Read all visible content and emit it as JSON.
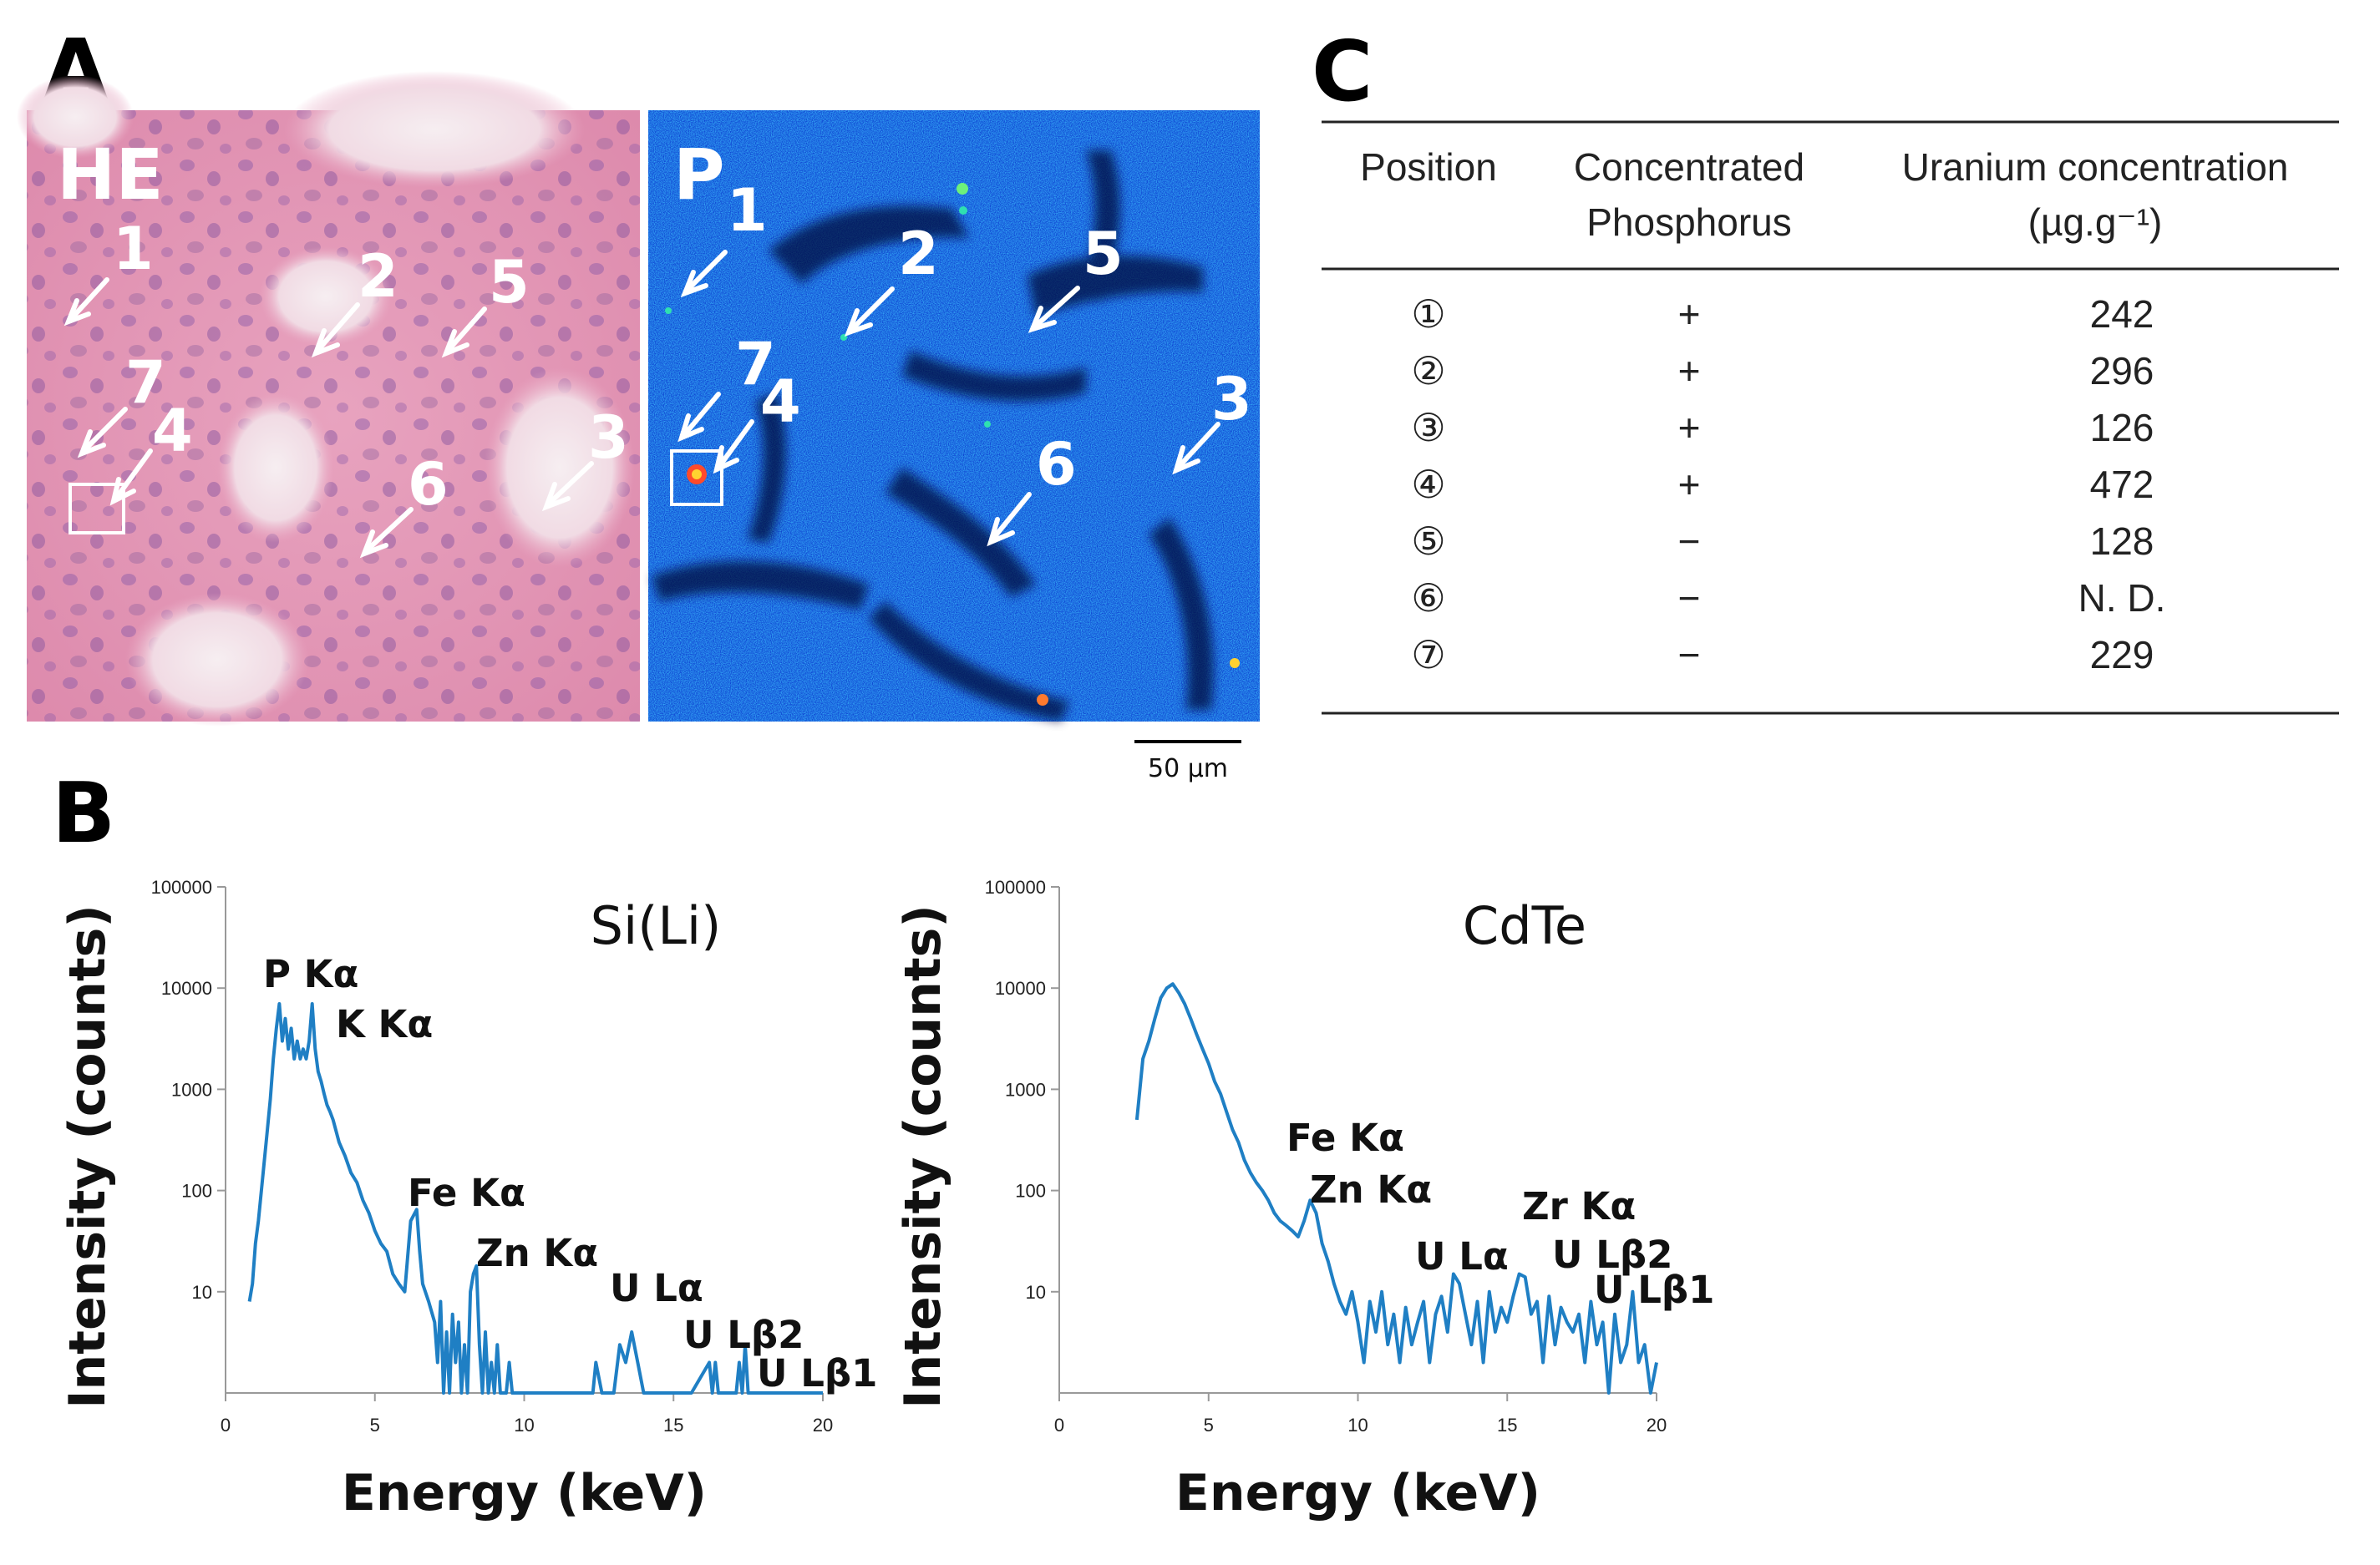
{
  "panels": {
    "a": "A",
    "b": "B",
    "c": "C"
  },
  "panel_a": {
    "he_label": "HE",
    "p_label": "P",
    "he_points": [
      "1",
      "2",
      "5",
      "7",
      "4",
      "3",
      "6"
    ],
    "p_points": [
      "1",
      "2",
      "5",
      "7",
      "4",
      "3",
      "6"
    ],
    "scale_bar": "50 µm"
  },
  "table": {
    "headers": {
      "position": "Position",
      "phosphorus_1": "Concentrated",
      "phosphorus_2": "Phosphorus",
      "uranium_1": "Uranium concentration",
      "uranium_2": "(µg.g⁻¹)"
    },
    "rows": [
      {
        "position": "①",
        "phosphorus": "+",
        "uranium": "242"
      },
      {
        "position": "②",
        "phosphorus": "+",
        "uranium": "296"
      },
      {
        "position": "③",
        "phosphorus": "+",
        "uranium": "126"
      },
      {
        "position": "④",
        "phosphorus": "+",
        "uranium": "472"
      },
      {
        "position": "⑤",
        "phosphorus": "−",
        "uranium": "128"
      },
      {
        "position": "⑥",
        "phosphorus": "−",
        "uranium": "N. D."
      },
      {
        "position": "⑦",
        "phosphorus": "−",
        "uranium": "229"
      }
    ]
  },
  "chart_data": [
    {
      "type": "line",
      "title": "Si(Li)",
      "xlabel": "Energy (keV)",
      "ylabel": "Intensity (counts)",
      "xlim": [
        0,
        20
      ],
      "ylim": [
        1,
        100000
      ],
      "yscale": "log",
      "xticks": [
        "0",
        "5",
        "10",
        "15",
        "20"
      ],
      "yticks": [
        "10",
        "100",
        "1000",
        "10000",
        "100000"
      ],
      "color": "#1f7fc4",
      "series": [
        {
          "name": "Si(Li)",
          "x": [
            0.8,
            0.9,
            1.0,
            1.1,
            1.2,
            1.3,
            1.4,
            1.5,
            1.6,
            1.7,
            1.8,
            1.9,
            2.0,
            2.1,
            2.2,
            2.3,
            2.4,
            2.5,
            2.6,
            2.7,
            2.8,
            2.9,
            3.0,
            3.1,
            3.2,
            3.3,
            3.4,
            3.5,
            3.6,
            3.8,
            4.0,
            4.2,
            4.4,
            4.6,
            4.8,
            5.0,
            5.2,
            5.4,
            5.6,
            5.8,
            6.0,
            6.2,
            6.4,
            6.5,
            6.6,
            6.8,
            7.0,
            7.1,
            7.2,
            7.3,
            7.4,
            7.5,
            7.6,
            7.7,
            7.8,
            7.9,
            8.0,
            8.1,
            8.2,
            8.3,
            8.4,
            8.5,
            8.6,
            8.7,
            8.8,
            8.9,
            9.0,
            9.1,
            9.2,
            9.3,
            9.4,
            9.5,
            9.6,
            9.7,
            9.8,
            9.9,
            10.0,
            12.0,
            12.3,
            12.4,
            12.6,
            13.0,
            13.2,
            13.4,
            13.6,
            13.8,
            14.0,
            15.6,
            16.2,
            16.3,
            16.4,
            16.5,
            16.6,
            17.1,
            17.2,
            17.3,
            17.4,
            17.5,
            18.0,
            18.4,
            18.6,
            20.0
          ],
          "y": [
            8,
            12,
            30,
            50,
            100,
            200,
            400,
            800,
            2000,
            4000,
            7000,
            3000,
            5000,
            2500,
            4000,
            2000,
            3000,
            2000,
            2500,
            2000,
            3000,
            7000,
            2500,
            1500,
            1200,
            900,
            700,
            600,
            500,
            300,
            220,
            150,
            120,
            80,
            60,
            40,
            30,
            25,
            15,
            12,
            10,
            50,
            65,
            25,
            12,
            8,
            5,
            2,
            8,
            1,
            4,
            1,
            6,
            2,
            5,
            1,
            3,
            1,
            10,
            15,
            18,
            3,
            1,
            4,
            1,
            2,
            1,
            3,
            1,
            1,
            1,
            2,
            1,
            1,
            1,
            1,
            1,
            1,
            1,
            2,
            1,
            1,
            3,
            2,
            4,
            2,
            1,
            1,
            2,
            1,
            2,
            1,
            1,
            1,
            2,
            1,
            3,
            1,
            1,
            1,
            1,
            1
          ]
        }
      ],
      "peaks": [
        {
          "label": "P Kα",
          "x": 1.9,
          "y": 7000
        },
        {
          "label": "K Kα",
          "x": 3.2,
          "y": 7000
        },
        {
          "label": "Fe Kα",
          "x": 6.4,
          "y": 65
        },
        {
          "label": "Zn Kα",
          "x": 8.6,
          "y": 18
        },
        {
          "label": "U Lα",
          "x": 13.6,
          "y": 4
        },
        {
          "label": "U Lβ2",
          "x": 16.4,
          "y": 2
        },
        {
          "label": "U Lβ1",
          "x": 17.3,
          "y": 3
        }
      ]
    },
    {
      "type": "line",
      "title": "CdTe",
      "xlabel": "Energy (keV)",
      "ylabel": "Intensity (counts)",
      "xlim": [
        0,
        20
      ],
      "ylim": [
        1,
        100000
      ],
      "yscale": "log",
      "xticks": [
        "0",
        "5",
        "10",
        "15",
        "20"
      ],
      "yticks": [
        "10",
        "100",
        "1000",
        "10000",
        "100000"
      ],
      "color": "#1f7fc4",
      "series": [
        {
          "name": "CdTe",
          "x": [
            2.6,
            2.8,
            3.0,
            3.2,
            3.4,
            3.6,
            3.8,
            4.0,
            4.2,
            4.4,
            4.6,
            4.8,
            5.0,
            5.2,
            5.4,
            5.6,
            5.8,
            6.0,
            6.2,
            6.4,
            6.6,
            6.8,
            7.0,
            7.2,
            7.4,
            7.6,
            7.8,
            8.0,
            8.2,
            8.4,
            8.6,
            8.8,
            9.0,
            9.2,
            9.4,
            9.6,
            9.8,
            10.0,
            10.2,
            10.4,
            10.6,
            10.8,
            11.0,
            11.2,
            11.4,
            11.6,
            11.8,
            12.0,
            12.2,
            12.4,
            12.6,
            12.8,
            13.0,
            13.2,
            13.4,
            13.6,
            13.8,
            14.0,
            14.2,
            14.4,
            14.6,
            14.8,
            15.0,
            15.2,
            15.4,
            15.6,
            15.8,
            16.0,
            16.2,
            16.4,
            16.6,
            16.8,
            17.0,
            17.2,
            17.4,
            17.6,
            17.8,
            18.0,
            18.2,
            18.4,
            18.6,
            18.8,
            19.0,
            19.2,
            19.4,
            19.6,
            19.8,
            20.0
          ],
          "y": [
            500,
            2000,
            3000,
            5000,
            8000,
            10000,
            11000,
            9000,
            7000,
            5000,
            3500,
            2500,
            1800,
            1200,
            900,
            600,
            400,
            300,
            200,
            150,
            120,
            100,
            80,
            60,
            50,
            45,
            40,
            35,
            50,
            80,
            60,
            30,
            20,
            12,
            8,
            6,
            10,
            5,
            2,
            8,
            4,
            10,
            3,
            6,
            2,
            7,
            3,
            5,
            8,
            2,
            6,
            9,
            4,
            15,
            12,
            6,
            3,
            8,
            2,
            10,
            4,
            7,
            5,
            9,
            15,
            14,
            6,
            8,
            2,
            9,
            3,
            7,
            5,
            4,
            6,
            2,
            8,
            3,
            5,
            1,
            6,
            2,
            3,
            10,
            2,
            3,
            1,
            2
          ]
        }
      ],
      "peaks": [
        {
          "label": "Fe Kα",
          "x": 6.4,
          "y": 150
        },
        {
          "label": "Zn Kα",
          "x": 8.6,
          "y": 60
        },
        {
          "label": "U Lα",
          "x": 13.6,
          "y": 12
        },
        {
          "label": "Zr Kα",
          "x": 15.7,
          "y": 15
        },
        {
          "label": "U Lβ2",
          "x": 16.8,
          "y": 8
        },
        {
          "label": "U Lβ1",
          "x": 17.3,
          "y": 7
        }
      ]
    }
  ]
}
